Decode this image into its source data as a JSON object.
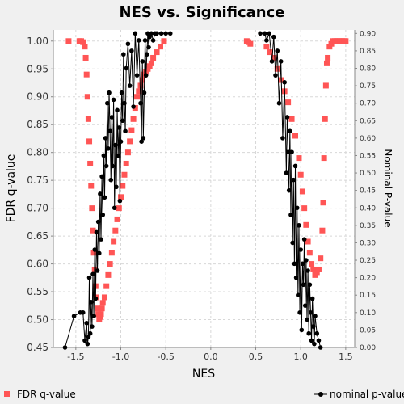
{
  "chart_data": {
    "type": "scatter",
    "title": "NES vs. Significance",
    "xlabel": "NES",
    "ylabel": "FDR q-value",
    "y2label": "Nominal P-value",
    "xlim": [
      -1.75,
      1.6
    ],
    "ylim": [
      0.45,
      1.02
    ],
    "y2lim": [
      0.0,
      0.91
    ],
    "x_ticks": [
      "-1.5",
      "-1.0",
      "-0.5",
      "0.0",
      "0.5",
      "1.0",
      "1.5"
    ],
    "y_ticks": [
      "0.45",
      "0.50",
      "0.55",
      "0.60",
      "0.65",
      "0.70",
      "0.75",
      "0.80",
      "0.85",
      "0.90",
      "0.95",
      "1.00"
    ],
    "y2_ticks": [
      "0.00",
      "0.05",
      "0.10",
      "0.15",
      "0.20",
      "0.25",
      "0.30",
      "0.35",
      "0.40",
      "0.45",
      "0.50",
      "0.55",
      "0.60",
      "0.65",
      "0.70",
      "0.75",
      "0.80",
      "0.85",
      "0.90"
    ],
    "grid": true,
    "legend_position": "bottom",
    "colors": {
      "fdr": "#ff5555",
      "pval": "#000000",
      "plot_bg": "#ffffff",
      "figure_bg": "#f0f0f0",
      "grid": "#d8d8d8"
    },
    "series": [
      {
        "name": "FDR q-value",
        "axis": "left",
        "marker": "square",
        "x": [
          -1.58,
          -1.46,
          -1.44,
          -1.42,
          -1.4,
          -1.39,
          -1.38,
          -1.37,
          -1.36,
          -1.35,
          -1.34,
          -1.33,
          -1.32,
          -1.31,
          -1.3,
          -1.29,
          -1.28,
          -1.27,
          -1.26,
          -1.25,
          -1.24,
          -1.23,
          -1.22,
          -1.21,
          -1.2,
          -1.18,
          -1.16,
          -1.14,
          -1.12,
          -1.1,
          -1.08,
          -1.06,
          -1.04,
          -1.02,
          -1.0,
          -0.98,
          -0.96,
          -0.94,
          -0.92,
          -0.9,
          -0.88,
          -0.86,
          -0.84,
          -0.82,
          -0.8,
          -0.78,
          -0.76,
          -0.74,
          -0.72,
          -0.7,
          -0.68,
          -0.66,
          -0.64,
          -0.6,
          -0.56,
          -0.52,
          0.4,
          0.42,
          0.44,
          0.62,
          0.66,
          0.7,
          0.74,
          0.78,
          0.82,
          0.86,
          0.9,
          0.94,
          0.98,
          1.0,
          1.02,
          1.04,
          1.06,
          1.08,
          1.1,
          1.12,
          1.14,
          1.16,
          1.18,
          1.2,
          1.22,
          1.24,
          1.25,
          1.26,
          1.27,
          1.28,
          1.29,
          1.3,
          1.32,
          1.34,
          1.36,
          1.38,
          1.4,
          1.42,
          1.44,
          1.46,
          1.48,
          1.5
        ],
        "y": [
          1.0,
          1.0,
          1.0,
          0.998,
          0.99,
          0.97,
          0.94,
          0.9,
          0.86,
          0.82,
          0.78,
          0.74,
          0.7,
          0.66,
          0.62,
          0.59,
          0.56,
          0.54,
          0.52,
          0.51,
          0.5,
          0.505,
          0.51,
          0.52,
          0.53,
          0.54,
          0.56,
          0.58,
          0.6,
          0.62,
          0.64,
          0.66,
          0.68,
          0.7,
          0.72,
          0.74,
          0.76,
          0.78,
          0.8,
          0.82,
          0.84,
          0.86,
          0.88,
          0.9,
          0.91,
          0.92,
          0.93,
          0.94,
          0.945,
          0.95,
          0.955,
          0.96,
          0.97,
          0.98,
          0.99,
          1.0,
          1.0,
          0.998,
          0.995,
          0.99,
          0.98,
          0.97,
          0.95,
          0.93,
          0.91,
          0.89,
          0.86,
          0.83,
          0.79,
          0.76,
          0.73,
          0.7,
          0.67,
          0.64,
          0.62,
          0.6,
          0.59,
          0.58,
          0.585,
          0.59,
          0.61,
          0.66,
          0.71,
          0.79,
          0.86,
          0.92,
          0.96,
          0.97,
          0.99,
          0.995,
          1.0,
          1.0,
          1.0,
          1.0,
          1.0,
          1.0,
          1.0,
          1.0
        ]
      },
      {
        "name": "nominal p-value",
        "axis": "right",
        "marker": "circle",
        "x": [
          -1.62,
          -1.52,
          -1.45,
          -1.42,
          -1.4,
          -1.38,
          -1.37,
          -1.36,
          -1.35,
          -1.34,
          -1.33,
          -1.32,
          -1.31,
          -1.3,
          -1.29,
          -1.28,
          -1.27,
          -1.26,
          -1.25,
          -1.24,
          -1.23,
          -1.22,
          -1.21,
          -1.2,
          -1.19,
          -1.18,
          -1.17,
          -1.16,
          -1.15,
          -1.14,
          -1.13,
          -1.12,
          -1.11,
          -1.1,
          -1.09,
          -1.08,
          -1.07,
          -1.06,
          -1.05,
          -1.04,
          -1.03,
          -1.02,
          -1.01,
          -1.0,
          -0.99,
          -0.98,
          -0.97,
          -0.96,
          -0.95,
          -0.94,
          -0.92,
          -0.9,
          -0.88,
          -0.86,
          -0.84,
          -0.82,
          -0.8,
          -0.78,
          -0.77,
          -0.76,
          -0.75,
          -0.74,
          -0.73,
          -0.72,
          -0.71,
          -0.7,
          -0.69,
          -0.68,
          -0.66,
          -0.64,
          -0.62,
          -0.6,
          -0.55,
          -0.5,
          -0.45,
          0.55,
          0.6,
          0.62,
          0.65,
          0.68,
          0.7,
          0.72,
          0.74,
          0.76,
          0.78,
          0.8,
          0.82,
          0.84,
          0.85,
          0.86,
          0.87,
          0.88,
          0.89,
          0.9,
          0.91,
          0.92,
          0.93,
          0.94,
          0.95,
          0.96,
          0.97,
          0.98,
          0.99,
          1.0,
          1.01,
          1.02,
          1.03,
          1.04,
          1.05,
          1.06,
          1.07,
          1.08,
          1.09,
          1.1,
          1.11,
          1.12,
          1.13,
          1.14,
          1.15,
          1.16,
          1.18,
          1.2,
          1.22
        ],
        "y": [
          0.0,
          0.09,
          0.1,
          0.1,
          0.02,
          0.07,
          0.01,
          0.03,
          0.2,
          0.04,
          0.13,
          0.06,
          0.21,
          0.09,
          0.28,
          0.14,
          0.33,
          0.22,
          0.36,
          0.27,
          0.44,
          0.31,
          0.49,
          0.38,
          0.55,
          0.43,
          0.6,
          0.52,
          0.7,
          0.57,
          0.73,
          0.62,
          0.48,
          0.66,
          0.52,
          0.71,
          0.4,
          0.58,
          0.46,
          0.68,
          0.55,
          0.63,
          0.42,
          0.59,
          0.73,
          0.65,
          0.84,
          0.7,
          0.62,
          0.8,
          0.87,
          0.75,
          0.85,
          0.69,
          0.9,
          0.78,
          0.88,
          0.7,
          0.59,
          0.82,
          0.6,
          0.73,
          0.88,
          0.78,
          0.84,
          0.9,
          0.86,
          0.89,
          0.9,
          0.88,
          0.9,
          0.9,
          0.9,
          0.9,
          0.9,
          0.9,
          0.9,
          0.88,
          0.9,
          0.82,
          0.89,
          0.78,
          0.85,
          0.7,
          0.82,
          0.6,
          0.76,
          0.5,
          0.66,
          0.56,
          0.45,
          0.62,
          0.38,
          0.56,
          0.3,
          0.48,
          0.24,
          0.52,
          0.2,
          0.4,
          0.15,
          0.35,
          0.1,
          0.28,
          0.05,
          0.24,
          0.18,
          0.31,
          0.12,
          0.25,
          0.08,
          0.22,
          0.04,
          0.18,
          0.1,
          0.02,
          0.14,
          0.06,
          0.01,
          0.09,
          0.04,
          0.02,
          0.0
        ]
      }
    ]
  }
}
